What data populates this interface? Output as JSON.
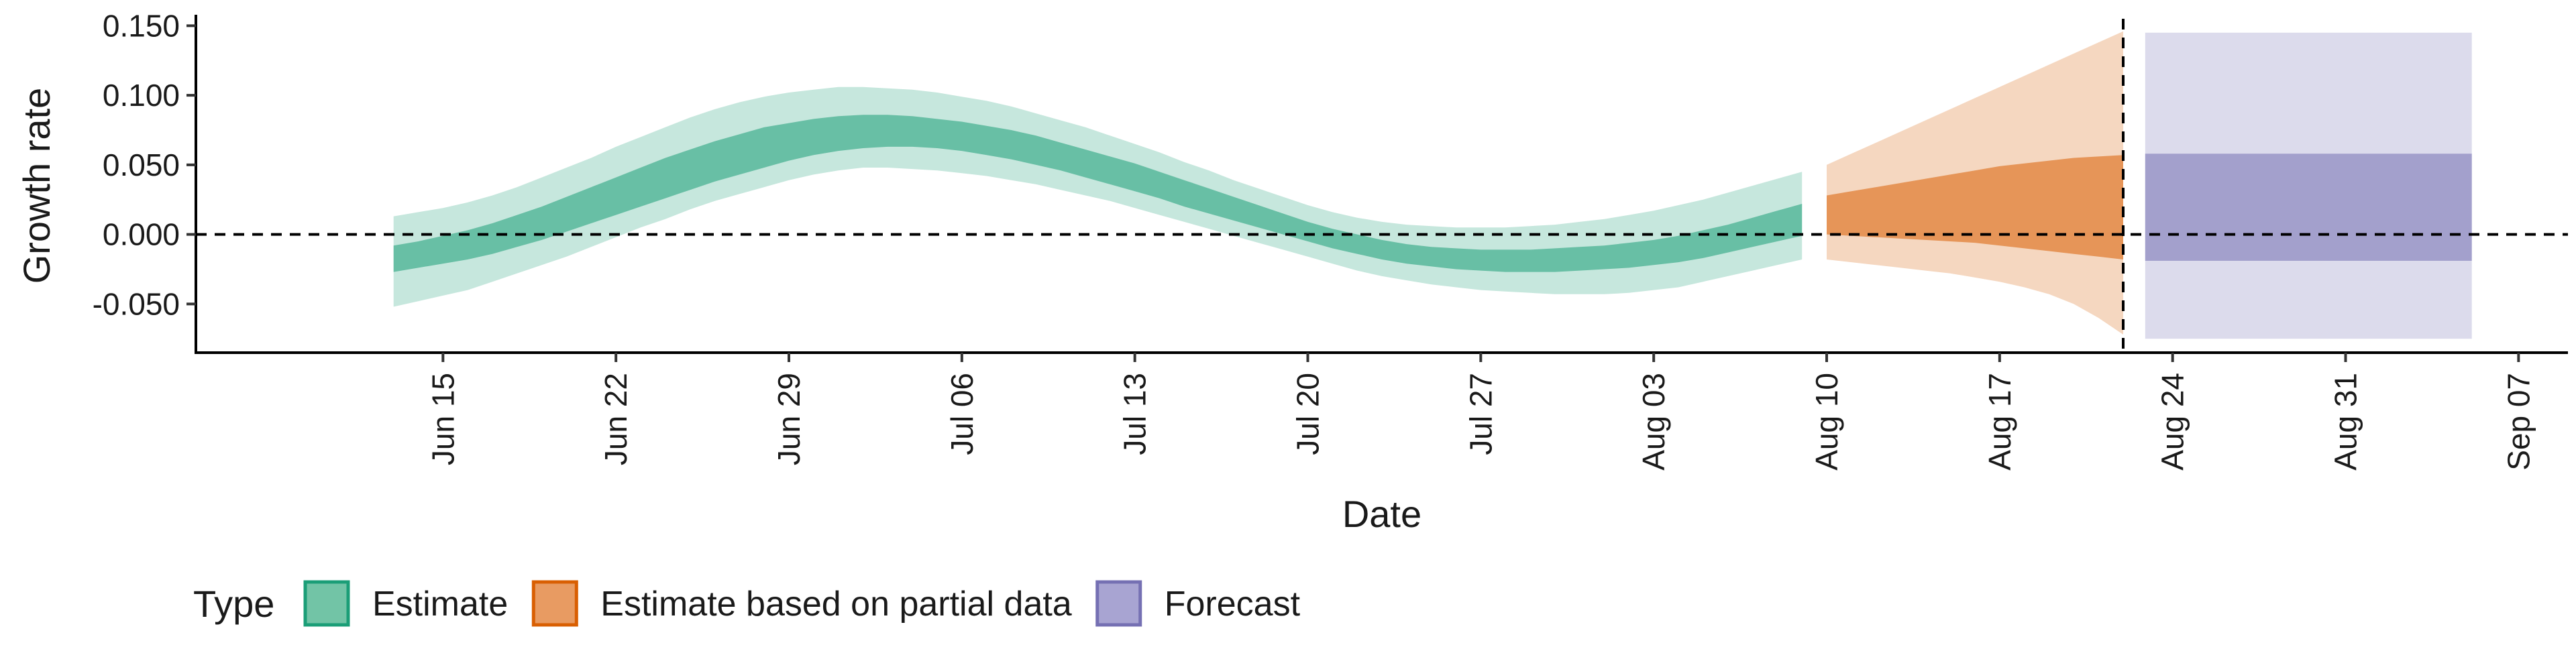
{
  "chart_data": {
    "type": "area",
    "title": "",
    "xlabel": "Date",
    "ylabel": "Growth rate",
    "x_range": [
      "2021-06-05",
      "2021-09-09"
    ],
    "ylim": [
      -0.085,
      0.155
    ],
    "y_ticks": [
      -0.05,
      0.0,
      0.05,
      0.1,
      0.15
    ],
    "y_tick_labels": [
      "-0.050",
      "0.000",
      "0.050",
      "0.100",
      "0.150"
    ],
    "x_ticks": [
      "2021-06-15",
      "2021-06-22",
      "2021-06-29",
      "2021-07-06",
      "2021-07-13",
      "2021-07-20",
      "2021-07-27",
      "2021-08-03",
      "2021-08-10",
      "2021-08-17",
      "2021-08-24",
      "2021-08-31",
      "2021-09-07"
    ],
    "x_tick_labels": [
      "Jun 15",
      "Jun 22",
      "Jun 29",
      "Jul 06",
      "Jul 13",
      "Jul 20",
      "Jul 27",
      "Aug 03",
      "Aug 10",
      "Aug 17",
      "Aug 24",
      "Aug 31",
      "Sep 07"
    ],
    "reference_lines": {
      "horizontal_y": 0.0,
      "vertical_x": "2021-08-22"
    },
    "legend": {
      "title": "Type",
      "position": "bottom",
      "entries": [
        {
          "label": "Estimate",
          "fill": "#72c4a6",
          "stroke": "#1b9e77"
        },
        {
          "label": "Estimate based on partial data",
          "fill": "#e89b62",
          "stroke": "#d95f02"
        },
        {
          "label": "Forecast",
          "fill": "#a8a4d2",
          "stroke": "#7570b3"
        }
      ]
    },
    "series": [
      {
        "name": "Estimate",
        "type": "band",
        "color": "#1b9e77",
        "x": [
          "2021-06-13",
          "2021-06-14",
          "2021-06-15",
          "2021-06-16",
          "2021-06-17",
          "2021-06-18",
          "2021-06-19",
          "2021-06-20",
          "2021-06-21",
          "2021-06-22",
          "2021-06-23",
          "2021-06-24",
          "2021-06-25",
          "2021-06-26",
          "2021-06-27",
          "2021-06-28",
          "2021-06-29",
          "2021-06-30",
          "2021-07-01",
          "2021-07-02",
          "2021-07-03",
          "2021-07-04",
          "2021-07-05",
          "2021-07-06",
          "2021-07-07",
          "2021-07-08",
          "2021-07-09",
          "2021-07-10",
          "2021-07-11",
          "2021-07-12",
          "2021-07-13",
          "2021-07-14",
          "2021-07-15",
          "2021-07-16",
          "2021-07-17",
          "2021-07-18",
          "2021-07-19",
          "2021-07-20",
          "2021-07-21",
          "2021-07-22",
          "2021-07-23",
          "2021-07-24",
          "2021-07-25",
          "2021-07-26",
          "2021-07-27",
          "2021-07-28",
          "2021-07-29",
          "2021-07-30",
          "2021-07-31",
          "2021-08-01",
          "2021-08-02",
          "2021-08-03",
          "2021-08-04",
          "2021-08-05",
          "2021-08-06",
          "2021-08-07",
          "2021-08-08",
          "2021-08-09"
        ],
        "lower_90": [
          -0.052,
          -0.048,
          -0.044,
          -0.04,
          -0.034,
          -0.028,
          -0.022,
          -0.016,
          -0.009,
          -0.002,
          0.005,
          0.011,
          0.018,
          0.024,
          0.029,
          0.034,
          0.039,
          0.043,
          0.046,
          0.048,
          0.048,
          0.047,
          0.046,
          0.044,
          0.042,
          0.039,
          0.036,
          0.032,
          0.028,
          0.024,
          0.019,
          0.014,
          0.009,
          0.004,
          -0.001,
          -0.006,
          -0.011,
          -0.016,
          -0.021,
          -0.026,
          -0.03,
          -0.033,
          -0.036,
          -0.038,
          -0.04,
          -0.041,
          -0.042,
          -0.043,
          -0.043,
          -0.043,
          -0.042,
          -0.04,
          -0.038,
          -0.034,
          -0.03,
          -0.026,
          -0.022,
          -0.018
        ],
        "lower_50": [
          -0.027,
          -0.024,
          -0.021,
          -0.018,
          -0.014,
          -0.009,
          -0.004,
          0.002,
          0.008,
          0.014,
          0.02,
          0.026,
          0.032,
          0.038,
          0.043,
          0.048,
          0.053,
          0.057,
          0.06,
          0.062,
          0.063,
          0.063,
          0.062,
          0.06,
          0.057,
          0.054,
          0.05,
          0.046,
          0.041,
          0.036,
          0.031,
          0.026,
          0.02,
          0.015,
          0.01,
          0.005,
          0.0,
          -0.005,
          -0.01,
          -0.014,
          -0.018,
          -0.021,
          -0.023,
          -0.025,
          -0.026,
          -0.027,
          -0.027,
          -0.027,
          -0.026,
          -0.025,
          -0.024,
          -0.022,
          -0.02,
          -0.017,
          -0.013,
          -0.009,
          -0.005,
          -0.001
        ],
        "upper_50": [
          -0.008,
          -0.005,
          -0.001,
          0.003,
          0.008,
          0.014,
          0.02,
          0.027,
          0.034,
          0.041,
          0.048,
          0.055,
          0.061,
          0.067,
          0.072,
          0.077,
          0.08,
          0.083,
          0.085,
          0.086,
          0.086,
          0.085,
          0.083,
          0.081,
          0.078,
          0.075,
          0.071,
          0.066,
          0.061,
          0.056,
          0.051,
          0.045,
          0.039,
          0.033,
          0.027,
          0.021,
          0.015,
          0.009,
          0.004,
          0.0,
          -0.004,
          -0.007,
          -0.009,
          -0.01,
          -0.011,
          -0.011,
          -0.011,
          -0.01,
          -0.009,
          -0.008,
          -0.006,
          -0.004,
          -0.001,
          0.003,
          0.007,
          0.012,
          0.017,
          0.022
        ],
        "upper_90": [
          0.013,
          0.016,
          0.019,
          0.023,
          0.028,
          0.034,
          0.041,
          0.048,
          0.055,
          0.063,
          0.07,
          0.077,
          0.084,
          0.09,
          0.095,
          0.099,
          0.102,
          0.104,
          0.106,
          0.106,
          0.105,
          0.104,
          0.102,
          0.099,
          0.096,
          0.092,
          0.087,
          0.082,
          0.077,
          0.071,
          0.065,
          0.059,
          0.052,
          0.046,
          0.039,
          0.033,
          0.027,
          0.021,
          0.016,
          0.012,
          0.009,
          0.007,
          0.006,
          0.005,
          0.005,
          0.005,
          0.006,
          0.007,
          0.009,
          0.011,
          0.014,
          0.017,
          0.021,
          0.025,
          0.03,
          0.035,
          0.04,
          0.045
        ]
      },
      {
        "name": "Estimate based on partial data",
        "type": "band",
        "color": "#d95f02",
        "x": [
          "2021-08-10",
          "2021-08-11",
          "2021-08-12",
          "2021-08-13",
          "2021-08-14",
          "2021-08-15",
          "2021-08-16",
          "2021-08-17",
          "2021-08-18",
          "2021-08-19",
          "2021-08-20",
          "2021-08-21",
          "2021-08-22"
        ],
        "lower_90": [
          -0.018,
          -0.02,
          -0.022,
          -0.024,
          -0.026,
          -0.028,
          -0.031,
          -0.034,
          -0.038,
          -0.043,
          -0.05,
          -0.06,
          -0.072
        ],
        "lower_50": [
          0.0,
          -0.001,
          -0.002,
          -0.003,
          -0.004,
          -0.005,
          -0.006,
          -0.008,
          -0.01,
          -0.012,
          -0.014,
          -0.016,
          -0.018
        ],
        "upper_50": [
          0.028,
          0.031,
          0.034,
          0.037,
          0.04,
          0.043,
          0.046,
          0.049,
          0.051,
          0.053,
          0.055,
          0.056,
          0.057
        ],
        "upper_90": [
          0.05,
          0.058,
          0.066,
          0.074,
          0.082,
          0.09,
          0.098,
          0.106,
          0.114,
          0.122,
          0.13,
          0.138,
          0.146
        ]
      },
      {
        "name": "Forecast",
        "type": "band",
        "color": "#7570b3",
        "x": [
          "2021-08-23",
          "2021-09-05"
        ],
        "lower_90": [
          -0.075,
          -0.075
        ],
        "lower_50": [
          -0.019,
          -0.019
        ],
        "upper_50": [
          0.058,
          0.058
        ],
        "upper_90": [
          0.145,
          0.145
        ]
      }
    ]
  }
}
